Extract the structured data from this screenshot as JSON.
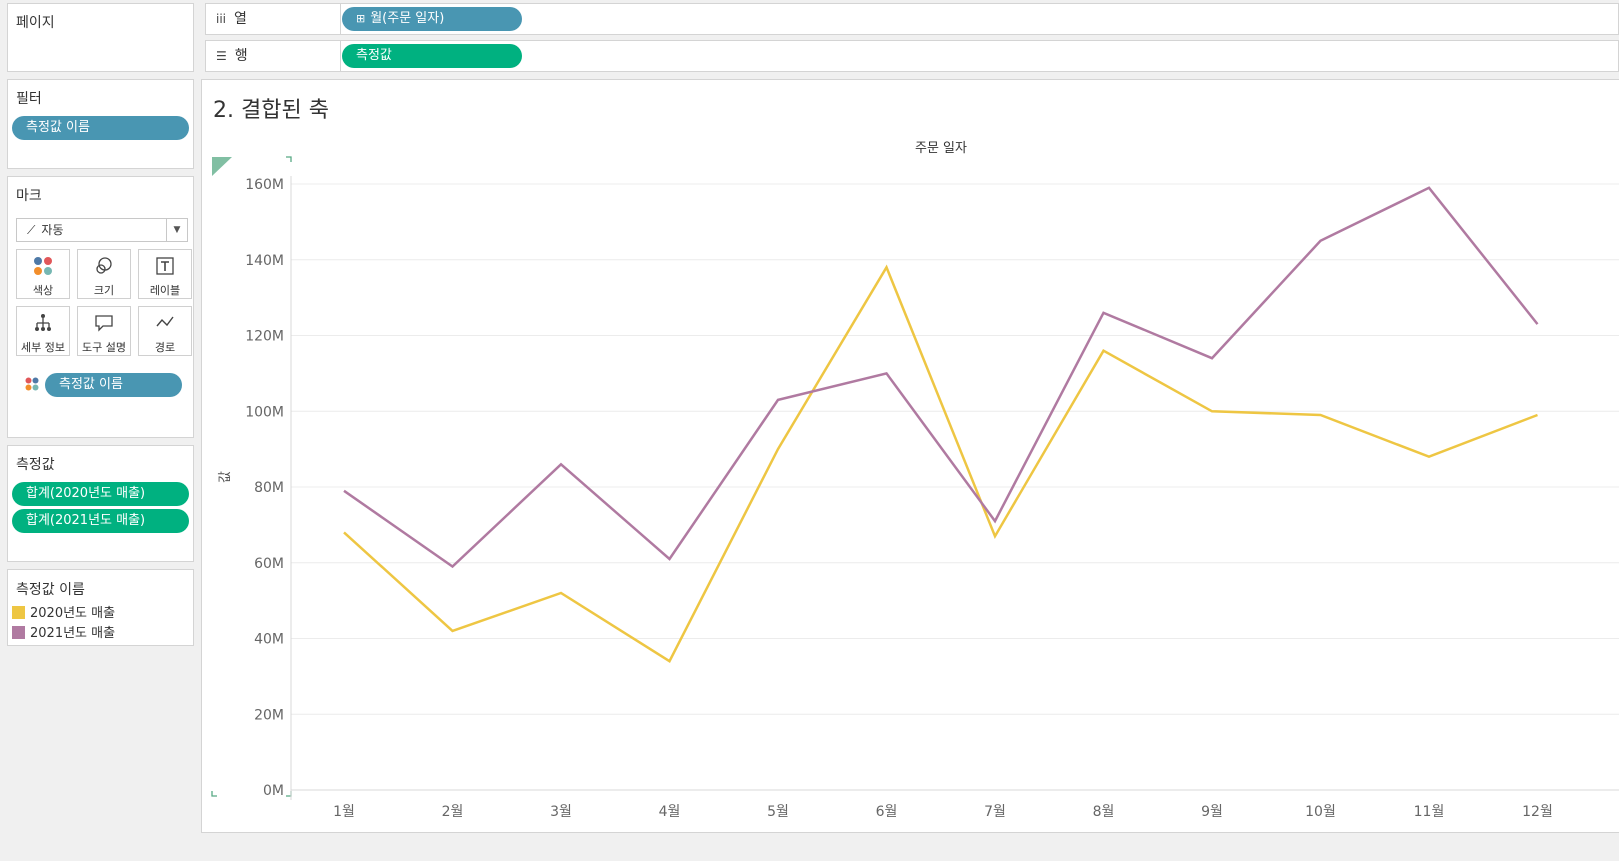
{
  "shelves": {
    "pages_label": "페이지",
    "columns": {
      "label": "열",
      "icon": "columns-icon",
      "pill": "월(주문 일자)",
      "pill_icon": "⊞"
    },
    "rows": {
      "label": "행",
      "icon": "rows-icon",
      "pill": "측정값"
    }
  },
  "filters": {
    "title": "필터",
    "pill": "측정값 이름"
  },
  "marks": {
    "title": "마크",
    "type": "자동",
    "buttons": [
      "색상",
      "크기",
      "레이블",
      "세부 정보",
      "도구 설명",
      "경로"
    ],
    "color_pill": "측정값 이름"
  },
  "measure_values": {
    "title": "측정값",
    "pills": [
      "합계(2020년도 매출)",
      "합계(2021년도 매출)"
    ]
  },
  "legend": {
    "title": "측정값 이름",
    "items": [
      {
        "label": "2020년도 매출",
        "color": "#eec643"
      },
      {
        "label": "2021년도 매출",
        "color": "#b07aa1"
      }
    ]
  },
  "viz_title": "2. 결합된 축",
  "chart_data": {
    "type": "line",
    "title": "2. 결합된 축",
    "header": "주문 일자",
    "ylabel": "값",
    "categories": [
      "1월",
      "2월",
      "3월",
      "4월",
      "5월",
      "6월",
      "7월",
      "8월",
      "9월",
      "10월",
      "11월",
      "12월"
    ],
    "ylim": [
      0,
      160
    ],
    "yticks": [
      "0M",
      "20M",
      "40M",
      "60M",
      "80M",
      "100M",
      "120M",
      "140M",
      "160M"
    ],
    "series": [
      {
        "name": "2020년도 매출",
        "color": "#eec643",
        "values": [
          68,
          42,
          52,
          34,
          90,
          138,
          67,
          116,
          100,
          99,
          88,
          99
        ]
      },
      {
        "name": "2021년도 매출",
        "color": "#b07aa1",
        "values": [
          79,
          59,
          86,
          61,
          103,
          110,
          71,
          126,
          114,
          145,
          159,
          123
        ]
      }
    ],
    "grid": true,
    "legend": "left-panel"
  }
}
